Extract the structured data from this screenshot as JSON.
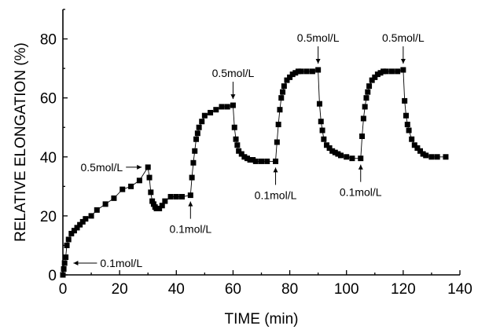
{
  "chart_data": {
    "type": "scatter",
    "title": "",
    "xlabel": "TIME (min)",
    "ylabel": "RELATIVE ELONGATION (%)",
    "xlim": [
      0,
      140
    ],
    "ylim": [
      0,
      90
    ],
    "xticks": [
      0,
      20,
      40,
      60,
      80,
      100,
      120,
      140
    ],
    "yticks": [
      0,
      20,
      40,
      60,
      80
    ],
    "grid": false,
    "marker": "square",
    "connected": true,
    "series": [
      {
        "x": [
          0,
          0.3,
          0.6,
          1,
          1.4,
          2,
          3,
          4,
          5,
          6,
          7,
          8,
          10,
          12,
          15,
          18,
          21,
          24,
          27,
          30,
          30.5,
          31,
          31.5,
          32,
          32.5,
          33,
          34,
          35,
          36,
          38,
          40,
          42,
          45,
          45.5,
          46,
          46.5,
          47,
          47.5,
          48,
          49,
          50,
          52,
          54,
          56,
          58,
          60,
          60.5,
          61,
          61.5,
          62,
          63,
          64,
          65,
          66,
          67,
          68,
          70,
          72,
          75,
          75.5,
          76,
          76.5,
          77,
          77.5,
          78,
          79,
          80,
          81,
          82,
          83,
          84,
          86,
          88,
          90,
          90.5,
          91,
          91.5,
          92,
          93,
          94,
          95,
          96,
          97,
          98,
          100,
          102,
          105,
          105.5,
          106,
          106.5,
          107,
          107.5,
          108,
          109,
          110,
          111,
          112,
          113,
          114,
          116,
          118,
          120,
          120.5,
          121,
          121.5,
          122,
          123,
          124,
          125,
          126,
          127,
          128,
          130,
          132,
          135
        ],
        "y": [
          0,
          2,
          4,
          6,
          10,
          12,
          14,
          15,
          16,
          17,
          18,
          19,
          20,
          22,
          24,
          26,
          29,
          30,
          32,
          36.5,
          33,
          28,
          25,
          24,
          23,
          22.5,
          22.5,
          23.5,
          25,
          26.5,
          26.5,
          26.5,
          27,
          33,
          38,
          42,
          46,
          48,
          50,
          52,
          54,
          55,
          56,
          57,
          57,
          57.5,
          50,
          46,
          44,
          42,
          41,
          40,
          39.5,
          39,
          39,
          38.5,
          38.5,
          38.5,
          38.5,
          45,
          51,
          56,
          60,
          62,
          64,
          66,
          67,
          68,
          68.5,
          69,
          69,
          69,
          69,
          69.5,
          58,
          52,
          49,
          46,
          44,
          43,
          42,
          41.5,
          41,
          40.5,
          40,
          39.5,
          39.5,
          47,
          53,
          57,
          60,
          62,
          64,
          66,
          67,
          68,
          68.5,
          69,
          69,
          69,
          69,
          69.5,
          59,
          54,
          51,
          49,
          46,
          44,
          43,
          42,
          41,
          40.5,
          40,
          40,
          40
        ]
      }
    ],
    "annotations": [
      {
        "text": "0.1mol/L",
        "x": 1.5,
        "y": 4,
        "direction": "left"
      },
      {
        "text": "0.5mol/L",
        "x": 30,
        "y": 36.5,
        "direction": "right"
      },
      {
        "text": "0.1mol/L",
        "x": 45,
        "y": 27,
        "direction": "up"
      },
      {
        "text": "0.5mol/L",
        "x": 60,
        "y": 57.5,
        "direction": "down"
      },
      {
        "text": "0.1mol/L",
        "x": 75,
        "y": 38.5,
        "direction": "up"
      },
      {
        "text": "0.5mol/L",
        "x": 90,
        "y": 69.5,
        "direction": "down"
      },
      {
        "text": "0.1mol/L",
        "x": 105,
        "y": 39.5,
        "direction": "up"
      },
      {
        "text": "0.5mol/L",
        "x": 120,
        "y": 69.5,
        "direction": "down"
      }
    ]
  }
}
